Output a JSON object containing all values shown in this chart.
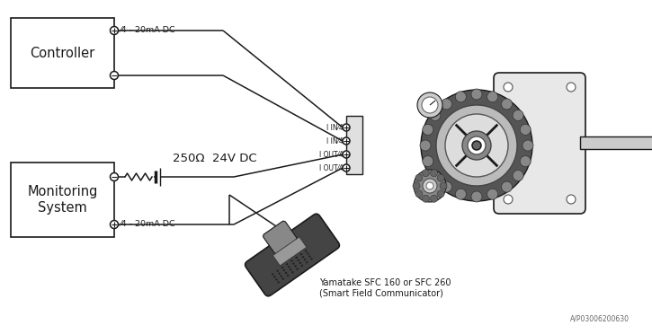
{
  "bg_color": "#ffffff",
  "line_color": "#1a1a1a",
  "controller_label": "Controller",
  "monitoring_label": "Monitoring\nSystem",
  "label_4_20mA_top": "⁄4 - 20mA DC",
  "label_4_20mA_bottom": "⁄4 - 20mA DC",
  "label_250_24V": "250Ω  24V DC",
  "label_sfc": "Yamatake SFC 160 or SFC 260\n(Smart Field Communicator)",
  "label_model": "A/P03006200630",
  "label_I_IN_1": "I IN⁄4",
  "label_I_IN_2": "I IN⁄4",
  "label_I_OUT_1": "I OUT⁄4",
  "label_I_OUT_2": "I OUT⁄4",
  "figsize": [
    7.25,
    3.72
  ],
  "dpi": 100
}
